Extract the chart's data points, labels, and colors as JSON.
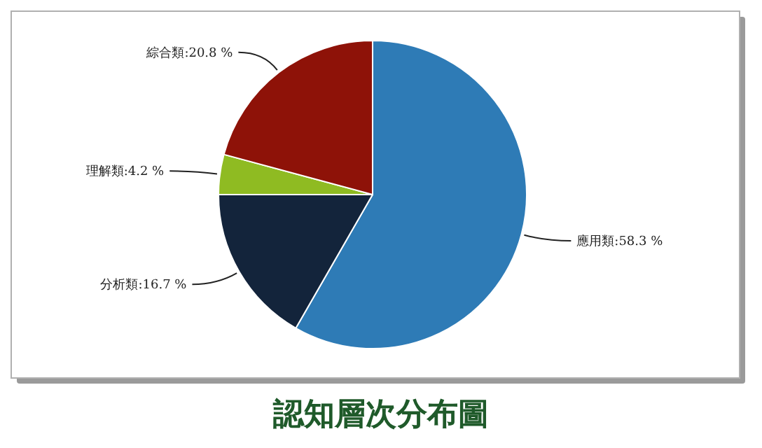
{
  "chart_data": {
    "type": "pie",
    "title": "認知層次分布圖",
    "categories": [
      "應用類",
      "分析類",
      "理解類",
      "綜合類"
    ],
    "values": [
      58.3,
      16.7,
      4.2,
      20.8
    ],
    "colors": [
      "#2e7bb6",
      "#13243b",
      "#8fbb22",
      "#8e1208"
    ],
    "value_labels": [
      "58.3 %",
      "16.7 %",
      "4.2 %",
      "20.8 %"
    ]
  }
}
